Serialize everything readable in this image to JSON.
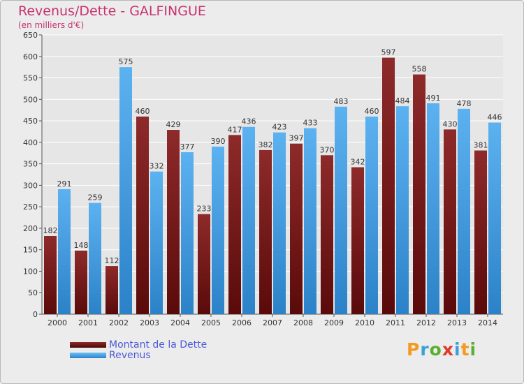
{
  "title": "Revenus/Dette - GALFINGUE",
  "subtitle": "(en milliers d'€)",
  "logo": {
    "text": "Proxiti",
    "letter_colors": [
      "#f29a1e",
      "#3aa0d8",
      "#58b030",
      "#e03a2a",
      "#3aa0d8",
      "#f29a1e",
      "#58b030"
    ]
  },
  "colors": {
    "dette": "#7a1c1c",
    "revenus": "#4ea5e8",
    "grid": "#ffffff",
    "background": "#ececec"
  },
  "chart_data": {
    "type": "bar",
    "categories": [
      "2000",
      "2001",
      "2002",
      "2003",
      "2004",
      "2005",
      "2006",
      "2007",
      "2008",
      "2009",
      "2010",
      "2011",
      "2012",
      "2013",
      "2014"
    ],
    "series": [
      {
        "name": "Montant de la Dette",
        "values": [
          182,
          148,
          112,
          460,
          429,
          233,
          417,
          382,
          397,
          370,
          342,
          597,
          558,
          430,
          381
        ]
      },
      {
        "name": "Revenus",
        "values": [
          291,
          259,
          575,
          332,
          377,
          390,
          436,
          423,
          433,
          483,
          460,
          484,
          491,
          478,
          446
        ]
      }
    ],
    "ylim": [
      0,
      650
    ],
    "yticks": [
      0,
      50,
      100,
      150,
      200,
      250,
      300,
      350,
      400,
      450,
      500,
      550,
      600,
      650
    ],
    "grid": true,
    "legend_position": "bottom-left"
  }
}
